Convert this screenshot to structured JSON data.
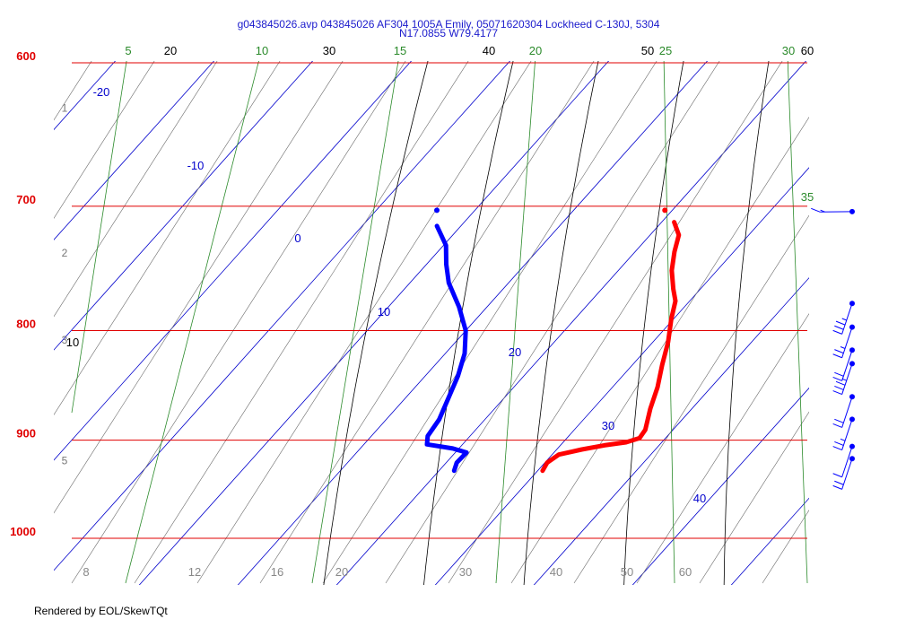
{
  "title_line1": "g043845026.avp 043845026 AF304 1005A Emily, 05071620304 Lockheed C-130J, 5304",
  "title_line2": "N17.0855 W79.4177",
  "credit": "Rendered by EOL/SkewTQt",
  "colors": {
    "isobar": "#e00000",
    "isobar_label": "#e00000",
    "isotherm": "#0000cc",
    "dry_adiabat": "#000000",
    "moist_adiabat": "#6a6a6a",
    "mixing_ratio": "#2a8a2a",
    "dewpoint_trace": "#0000ff",
    "temperature_trace": "#ff0000",
    "wind": "#0000ff"
  },
  "chart_data": {
    "type": "skew-t",
    "pressure_levels": [
      {
        "p": 600,
        "label": "600"
      },
      {
        "p": 700,
        "label": "700"
      },
      {
        "p": 800,
        "label": "800"
      },
      {
        "p": 900,
        "label": "900"
      },
      {
        "p": 1000,
        "label": "1000"
      }
    ],
    "height_labels": [
      {
        "p": 630,
        "label": "1"
      },
      {
        "p": 736,
        "label": "2"
      },
      {
        "p": 808,
        "label": "3"
      },
      {
        "p": 920,
        "label": "5"
      }
    ],
    "isotherm_labels": [
      {
        "t": -20,
        "label": "-20"
      },
      {
        "t": -10,
        "label": "-10"
      },
      {
        "t": 0,
        "label": "0"
      },
      {
        "t": 10,
        "label": "10"
      },
      {
        "t": 20,
        "label": "20"
      },
      {
        "t": 30,
        "label": "30"
      },
      {
        "t": 40,
        "label": "40"
      }
    ],
    "dry_adiabat_labels": [
      "20",
      "30",
      "40",
      "50",
      "60",
      "10"
    ],
    "mixing_ratio_labels": [
      "5",
      "10",
      "15",
      "20",
      "25",
      "30",
      "35"
    ],
    "bottom_labels": [
      "8",
      "12",
      "16",
      "20",
      "30",
      "40",
      "50",
      "60"
    ],
    "temperature": [
      {
        "p": 930,
        "t": 20.8
      },
      {
        "p": 922,
        "t": 20.8
      },
      {
        "p": 914,
        "t": 21.5
      },
      {
        "p": 909,
        "t": 23.5
      },
      {
        "p": 905,
        "t": 25.5
      },
      {
        "p": 902,
        "t": 27.5
      },
      {
        "p": 898,
        "t": 28.6
      },
      {
        "p": 890,
        "t": 28.7
      },
      {
        "p": 870,
        "t": 28.0
      },
      {
        "p": 850,
        "t": 27.5
      },
      {
        "p": 830,
        "t": 26.7
      },
      {
        "p": 810,
        "t": 26.0
      },
      {
        "p": 790,
        "t": 25.0
      },
      {
        "p": 775,
        "t": 24.4
      },
      {
        "p": 765,
        "t": 23.5
      },
      {
        "p": 750,
        "t": 22.3
      },
      {
        "p": 735,
        "t": 21.5
      },
      {
        "p": 722,
        "t": 21.0
      },
      {
        "p": 712,
        "t": 19.8
      }
    ],
    "dewpoint": [
      {
        "p": 930,
        "t": 12.0
      },
      {
        "p": 922,
        "t": 11.8
      },
      {
        "p": 912,
        "t": 12.2
      },
      {
        "p": 908,
        "t": 10.6
      },
      {
        "p": 904,
        "t": 7.8
      },
      {
        "p": 896,
        "t": 7.4
      },
      {
        "p": 880,
        "t": 7.6
      },
      {
        "p": 860,
        "t": 7.3
      },
      {
        "p": 840,
        "t": 7.0
      },
      {
        "p": 820,
        "t": 6.4
      },
      {
        "p": 800,
        "t": 5.2
      },
      {
        "p": 780,
        "t": 3.2
      },
      {
        "p": 760,
        "t": 0.8
      },
      {
        "p": 745,
        "t": -0.5
      },
      {
        "p": 730,
        "t": -1.6
      },
      {
        "p": 715,
        "t": -3.6
      }
    ],
    "top_markers": [
      {
        "p": 703,
        "t": -4.5,
        "series": "dewpoint"
      },
      {
        "p": 703,
        "t": 18.2,
        "series": "temperature"
      }
    ],
    "wind_barbs": [
      {
        "p": 704,
        "speed_kt": 5
      },
      {
        "p": 777,
        "speed_kt": 25
      },
      {
        "p": 797,
        "speed_kt": 15
      },
      {
        "p": 817,
        "speed_kt": 20
      },
      {
        "p": 829,
        "speed_kt": 25
      },
      {
        "p": 859,
        "speed_kt": 20
      },
      {
        "p": 880,
        "speed_kt": 15
      },
      {
        "p": 906,
        "speed_kt": 10
      },
      {
        "p": 918,
        "speed_kt": 20
      }
    ]
  }
}
